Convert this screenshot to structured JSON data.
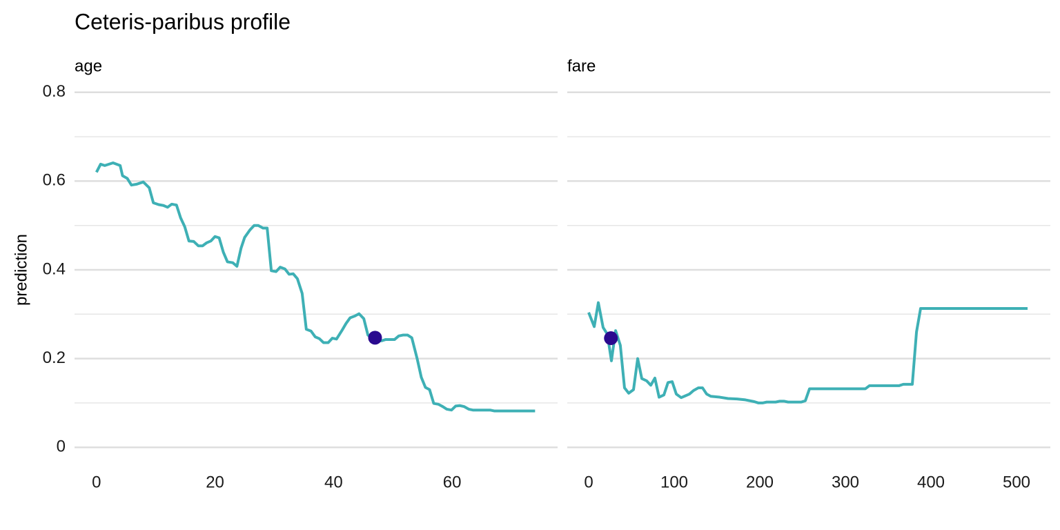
{
  "title": "Ceteris-paribus profile",
  "ylabel": "prediction",
  "chart_data": [
    {
      "type": "line",
      "subtitle": "age",
      "color": "#3eb0b5",
      "x": [
        0,
        0.7,
        1.4,
        2.8,
        4,
        4.4,
        5.2,
        5.9,
        6.8,
        7.9,
        8.9,
        9.6,
        10.5,
        11.3,
        12,
        12.7,
        13.5,
        14.2,
        14.9,
        15.6,
        16.4,
        17.2,
        17.9,
        18.6,
        19.3,
        20,
        20.7,
        21.4,
        22.1,
        23,
        23.7,
        24.4,
        25,
        25.9,
        26.6,
        27.3,
        28.1,
        28.8,
        29.5,
        30.3,
        31,
        31.8,
        32.5,
        33.2,
        33.9,
        34.7,
        35.4,
        36.2,
        36.9,
        37.6,
        38.3,
        39.1,
        39.8,
        40.5,
        41.4,
        42.1,
        42.8,
        43.6,
        44.3,
        45.1,
        45.8,
        46.6,
        47.3,
        48.1,
        48.8,
        49.6,
        50.3,
        51,
        51.7,
        52.5,
        53.2,
        54.1,
        54.8,
        55.5,
        56.2,
        56.9,
        57.7,
        58.4,
        59.1,
        59.9,
        60.6,
        61.3,
        62,
        62.8,
        63.5,
        64.9,
        66.4,
        67.1,
        74
      ],
      "values": [
        0.62,
        0.638,
        0.635,
        0.641,
        0.635,
        0.612,
        0.606,
        0.591,
        0.593,
        0.598,
        0.585,
        0.551,
        0.547,
        0.545,
        0.541,
        0.548,
        0.546,
        0.517,
        0.497,
        0.465,
        0.464,
        0.454,
        0.454,
        0.461,
        0.465,
        0.475,
        0.472,
        0.44,
        0.418,
        0.416,
        0.408,
        0.449,
        0.473,
        0.49,
        0.5,
        0.5,
        0.494,
        0.494,
        0.398,
        0.396,
        0.406,
        0.402,
        0.39,
        0.391,
        0.38,
        0.347,
        0.266,
        0.262,
        0.249,
        0.245,
        0.236,
        0.236,
        0.246,
        0.244,
        0.263,
        0.279,
        0.292,
        0.296,
        0.301,
        0.29,
        0.253,
        0.245,
        0.24,
        0.24,
        0.243,
        0.243,
        0.243,
        0.251,
        0.253,
        0.253,
        0.247,
        0.2,
        0.158,
        0.135,
        0.13,
        0.099,
        0.097,
        0.092,
        0.086,
        0.084,
        0.093,
        0.094,
        0.092,
        0.086,
        0.084,
        0.084,
        0.084,
        0.082,
        0.082
      ],
      "point": {
        "x": 47,
        "value": 0.247,
        "color": "#2a0a8f"
      },
      "xlim": [
        -3.7,
        77.8
      ],
      "xticks": [
        0,
        20,
        40,
        60
      ],
      "ylim": [
        -0.037,
        0.837
      ],
      "yticks": [
        0.0,
        0.2,
        0.4,
        0.6,
        0.8
      ],
      "minor_yticks": [
        0.1,
        0.3,
        0.5,
        0.7
      ],
      "show_ytick_labels": true,
      "grid": true
    },
    {
      "type": "line",
      "subtitle": "fare",
      "color": "#3eb0b5",
      "x": [
        0,
        6.5,
        11.3,
        16.9,
        21.8,
        26.6,
        31.5,
        37,
        41.9,
        46.8,
        52.4,
        57.3,
        62.1,
        67.7,
        72.6,
        77.4,
        82.3,
        87.9,
        92.7,
        97.6,
        102.4,
        108.1,
        112.9,
        117.7,
        122.6,
        128.2,
        133.1,
        137.9,
        142.7,
        153.2,
        162.9,
        173.4,
        183.1,
        193.5,
        198.4,
        203.2,
        208.1,
        218.5,
        223.4,
        228.2,
        233.1,
        248.4,
        253.2,
        258.1,
        323.4,
        328.2,
        362.9,
        367.7,
        378.2,
        383.1,
        387.9,
        512.9
      ],
      "values": [
        0.304,
        0.272,
        0.326,
        0.27,
        0.255,
        0.195,
        0.263,
        0.23,
        0.134,
        0.122,
        0.13,
        0.2,
        0.155,
        0.15,
        0.14,
        0.156,
        0.113,
        0.118,
        0.146,
        0.148,
        0.12,
        0.112,
        0.116,
        0.12,
        0.128,
        0.134,
        0.134,
        0.12,
        0.115,
        0.113,
        0.11,
        0.109,
        0.107,
        0.103,
        0.1,
        0.1,
        0.102,
        0.102,
        0.104,
        0.104,
        0.102,
        0.102,
        0.105,
        0.132,
        0.132,
        0.139,
        0.139,
        0.142,
        0.142,
        0.26,
        0.313,
        0.313
      ],
      "point": {
        "x": 26,
        "value": 0.246,
        "color": "#2a0a8f"
      },
      "xlim": [
        -25,
        539.5
      ],
      "xticks": [
        0,
        100,
        200,
        300,
        400,
        500
      ],
      "ylim": [
        -0.037,
        0.837
      ],
      "yticks": [
        0.0,
        0.2,
        0.4,
        0.6,
        0.8
      ],
      "minor_yticks": [
        0.1,
        0.3,
        0.5,
        0.7
      ],
      "show_ytick_labels": false,
      "grid": true
    }
  ]
}
